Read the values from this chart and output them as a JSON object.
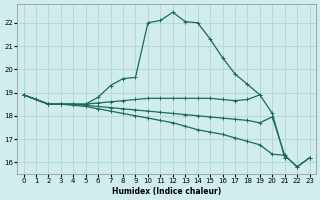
{
  "xlabel": "Humidex (Indice chaleur)",
  "background_color": "#d0ecec",
  "grid_color": "#b8d8d8",
  "line_color": "#1a6b5a",
  "xlim": [
    -0.5,
    23.5
  ],
  "ylim": [
    15.5,
    22.8
  ],
  "yticks": [
    16,
    17,
    18,
    19,
    20,
    21,
    22
  ],
  "xticks": [
    0,
    1,
    2,
    3,
    4,
    5,
    6,
    7,
    8,
    9,
    10,
    11,
    12,
    13,
    14,
    15,
    16,
    17,
    18,
    19,
    20,
    21,
    22,
    23
  ],
  "lines": [
    {
      "x": [
        0,
        1,
        2,
        3,
        4,
        5,
        6,
        7,
        8,
        9,
        10,
        11,
        12,
        13,
        14,
        15,
        16,
        17,
        18,
        19,
        20,
        21
      ],
      "y": [
        18.9,
        18.7,
        18.5,
        18.5,
        18.5,
        18.5,
        18.8,
        19.3,
        19.6,
        19.65,
        22.0,
        22.1,
        22.45,
        22.05,
        22.0,
        21.3,
        20.5,
        19.8,
        19.35,
        18.9,
        18.1,
        16.2
      ]
    },
    {
      "x": [
        0,
        2,
        3,
        4,
        5,
        6,
        7,
        8,
        9,
        10,
        11,
        12,
        13,
        14,
        15,
        16,
        17,
        18,
        19
      ],
      "y": [
        18.9,
        18.5,
        18.5,
        18.5,
        18.5,
        18.55,
        18.6,
        18.65,
        18.7,
        18.75,
        18.75,
        18.75,
        18.75,
        18.75,
        18.75,
        18.7,
        18.65,
        18.7,
        18.9
      ]
    },
    {
      "x": [
        0,
        2,
        3,
        4,
        5,
        6,
        7,
        8,
        9,
        10,
        11,
        12,
        13,
        14,
        15,
        16,
        17,
        18,
        19,
        20,
        21,
        22,
        23
      ],
      "y": [
        18.9,
        18.5,
        18.5,
        18.5,
        18.45,
        18.4,
        18.35,
        18.3,
        18.25,
        18.2,
        18.15,
        18.1,
        18.05,
        18.0,
        17.95,
        17.9,
        17.85,
        17.8,
        17.7,
        17.95,
        16.3,
        15.8,
        16.2
      ]
    },
    {
      "x": [
        0,
        2,
        3,
        4,
        5,
        6,
        7,
        8,
        9,
        10,
        11,
        12,
        13,
        14,
        15,
        16,
        17,
        18,
        19,
        20,
        21,
        22,
        23
      ],
      "y": [
        18.9,
        18.5,
        18.5,
        18.45,
        18.4,
        18.3,
        18.2,
        18.1,
        18.0,
        17.9,
        17.8,
        17.7,
        17.55,
        17.4,
        17.3,
        17.2,
        17.05,
        16.9,
        16.75,
        16.35,
        16.3,
        15.8,
        16.2
      ]
    }
  ]
}
